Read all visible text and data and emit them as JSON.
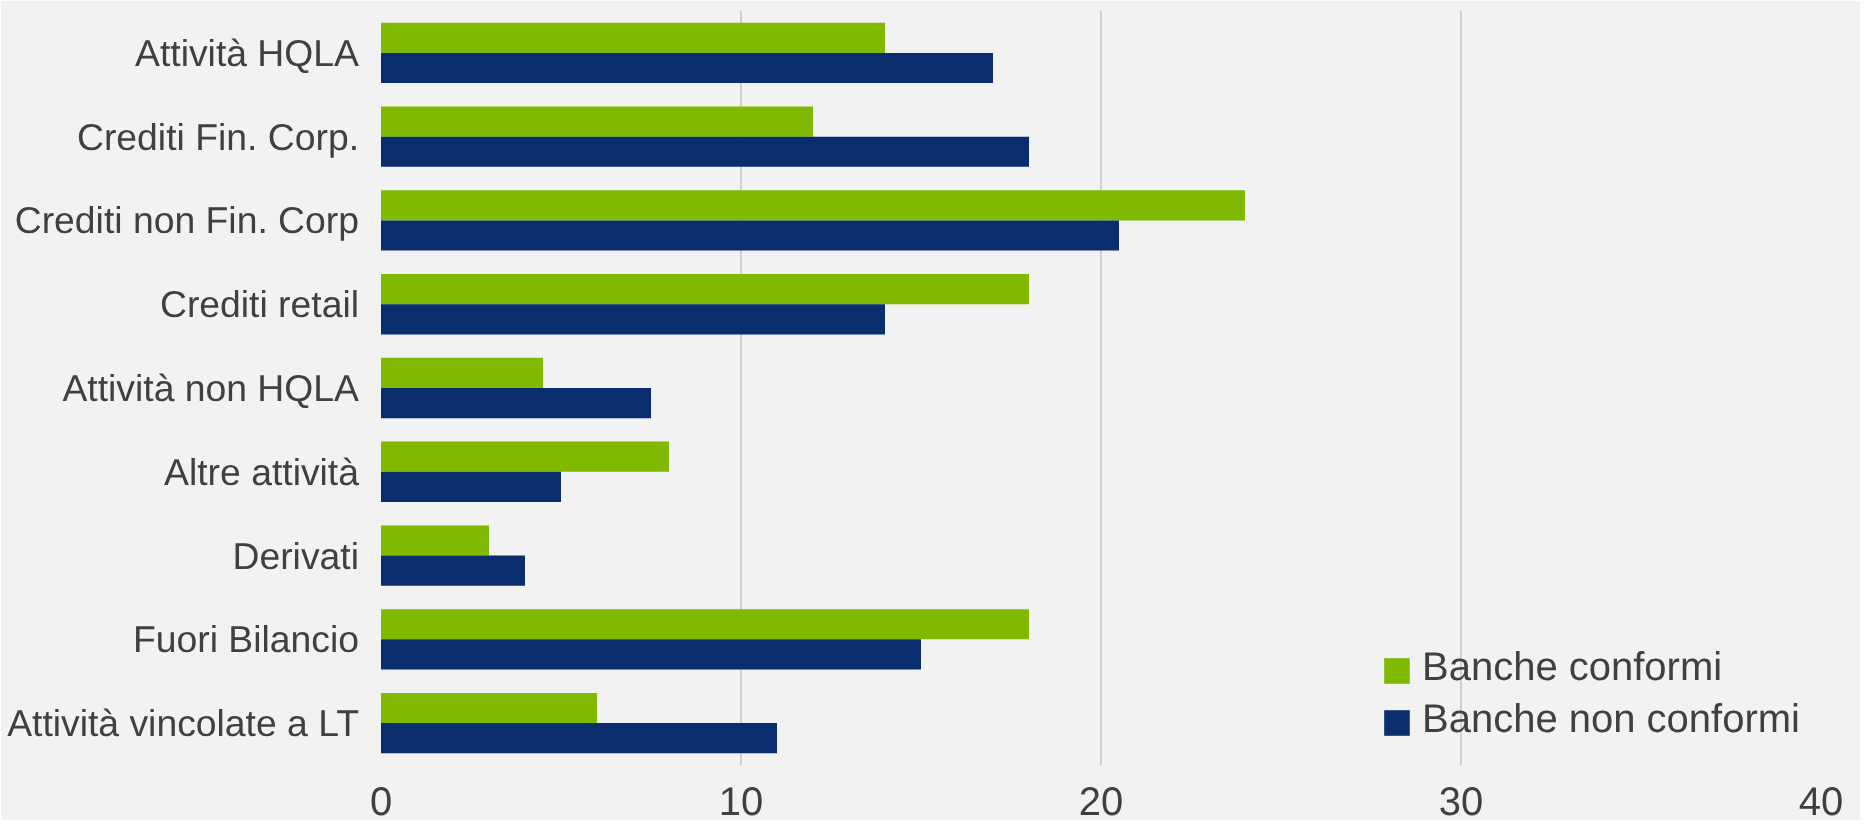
{
  "chart_data": {
    "type": "bar",
    "orientation": "horizontal",
    "categories": [
      "Attività HQLA",
      "Crediti Fin. Corp.",
      "Crediti non Fin. Corp",
      "Crediti retail",
      "Attività non HQLA",
      "Altre attività",
      "Derivati",
      "Fuori Bilancio",
      "Attività vincolate a LT"
    ],
    "series": [
      {
        "name": "Banche conformi",
        "color": "#7fba00",
        "values": [
          14,
          12,
          24,
          18,
          4.5,
          8,
          3,
          18,
          6
        ]
      },
      {
        "name": "Banche non conformi",
        "color": "#0a2d6e",
        "values": [
          17,
          18,
          20.5,
          14,
          7.5,
          5,
          4,
          15,
          11
        ]
      }
    ],
    "xlim": [
      0,
      40
    ],
    "xticks": [
      0,
      10,
      20,
      30,
      40
    ],
    "grid": "x",
    "legend": "bottom right"
  }
}
